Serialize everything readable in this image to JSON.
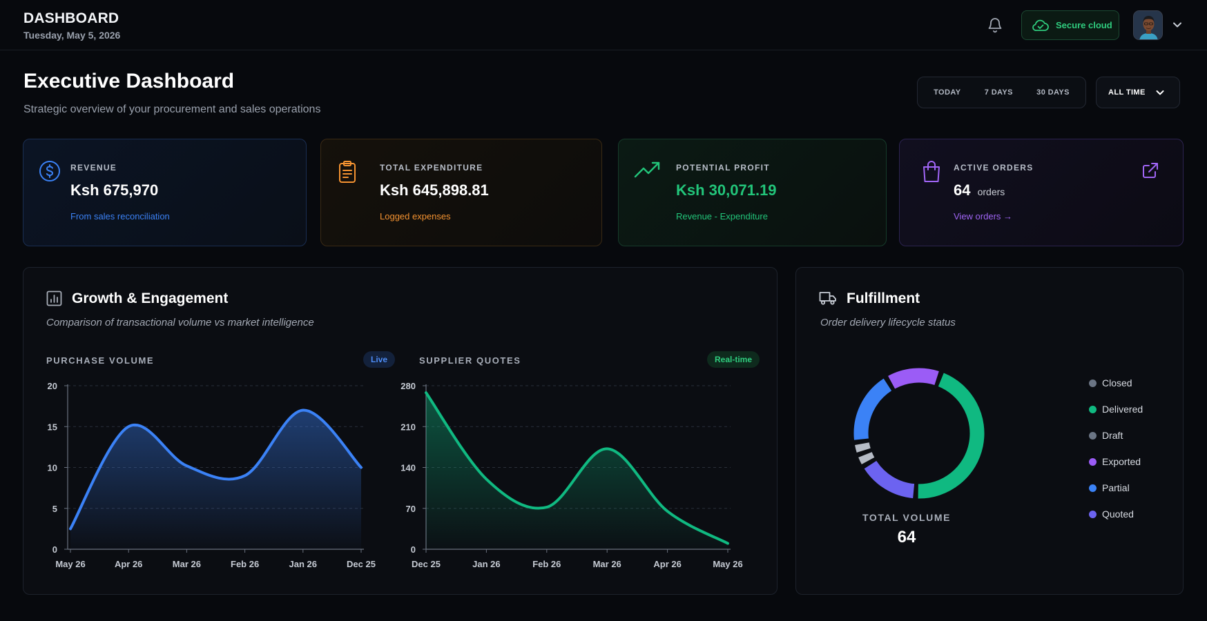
{
  "topbar": {
    "title": "DASHBOARD",
    "date": "Tuesday, May 5, 2026",
    "cloud_label": "Secure cloud",
    "icons": [
      "bell-icon",
      "cloud-check-icon",
      "chevron-down-icon"
    ]
  },
  "header": {
    "title": "Executive Dashboard",
    "subtitle": "Strategic overview of your procurement and sales operations",
    "ranges": [
      "TODAY",
      "7 DAYS",
      "30 DAYS"
    ],
    "selected_range": "ALL TIME"
  },
  "kpis": [
    {
      "label": "REVENUE",
      "value": "Ksh 675,970",
      "note": "From sales reconciliation",
      "icon": "dollar-circle-icon",
      "color": "#3b82f6"
    },
    {
      "label": "TOTAL EXPENDITURE",
      "value": "Ksh 645,898.81",
      "note": "Logged expenses",
      "icon": "clipboard-icon",
      "color": "#f59331"
    },
    {
      "label": "POTENTIAL PROFIT",
      "value": "Ksh 30,071.19",
      "note": "Revenue - Expenditure",
      "icon": "trending-up-icon",
      "color": "#22c57a"
    },
    {
      "label": "ACTIVE ORDERS",
      "value": "64",
      "value_unit": "orders",
      "note": "View orders →",
      "icon": "shopping-bag-icon",
      "color": "#a065f5"
    }
  ],
  "growth": {
    "title": "Growth & Engagement",
    "subtitle": "Comparison of transactional volume vs market intelligence",
    "purchase": {
      "label": "PURCHASE VOLUME",
      "badge": "Live"
    },
    "quotes": {
      "label": "SUPPLIER QUOTES",
      "badge": "Real-time"
    }
  },
  "fulfillment": {
    "title": "Fulfillment",
    "subtitle": "Order delivery lifecycle status",
    "total_label": "TOTAL VOLUME",
    "total_value": "64",
    "legend": [
      {
        "name": "Closed",
        "color": "#6b7585"
      },
      {
        "name": "Delivered",
        "color": "#10b981"
      },
      {
        "name": "Draft",
        "color": "#6b7585"
      },
      {
        "name": "Exported",
        "color": "#9b5cf6"
      },
      {
        "name": "Partial",
        "color": "#3b82f6"
      },
      {
        "name": "Quoted",
        "color": "#6c63f0"
      }
    ]
  },
  "chart_data": [
    {
      "type": "area",
      "x": [
        "May 26",
        "Apr 26",
        "Mar 26",
        "Feb 26",
        "Jan 26",
        "Dec 25"
      ],
      "series": [
        {
          "values": [
            2.5,
            15,
            10.2,
            9,
            17,
            10
          ]
        }
      ],
      "title": "PURCHASE VOLUME",
      "ylim": [
        0,
        20
      ],
      "yticks": [
        "0",
        "5",
        "10",
        "15",
        "20"
      ],
      "grid": true,
      "color": "#3b82f6"
    },
    {
      "type": "area",
      "x": [
        "Dec 25",
        "Jan 26",
        "Feb 26",
        "Mar 26",
        "Apr 26",
        "May 26"
      ],
      "series": [
        {
          "values": [
            268,
            120,
            72,
            172,
            65,
            10
          ]
        }
      ],
      "title": "SUPPLIER QUOTES",
      "ylim": [
        0,
        280
      ],
      "yticks": [
        "0",
        "70",
        "140",
        "210",
        "280"
      ],
      "grid": true,
      "color": "#10b981"
    },
    {
      "type": "pie",
      "title": "Fulfillment",
      "categories": [
        "Delivered",
        "Quoted",
        "Closed",
        "Draft",
        "Partial",
        "Exported"
      ],
      "values": [
        29,
        10,
        2,
        2,
        12,
        9
      ],
      "colors": [
        "#10b981",
        "#6c63f0",
        "#b6bcc6",
        "#b6bcc6",
        "#3b82f6",
        "#9b5cf6"
      ]
    }
  ]
}
